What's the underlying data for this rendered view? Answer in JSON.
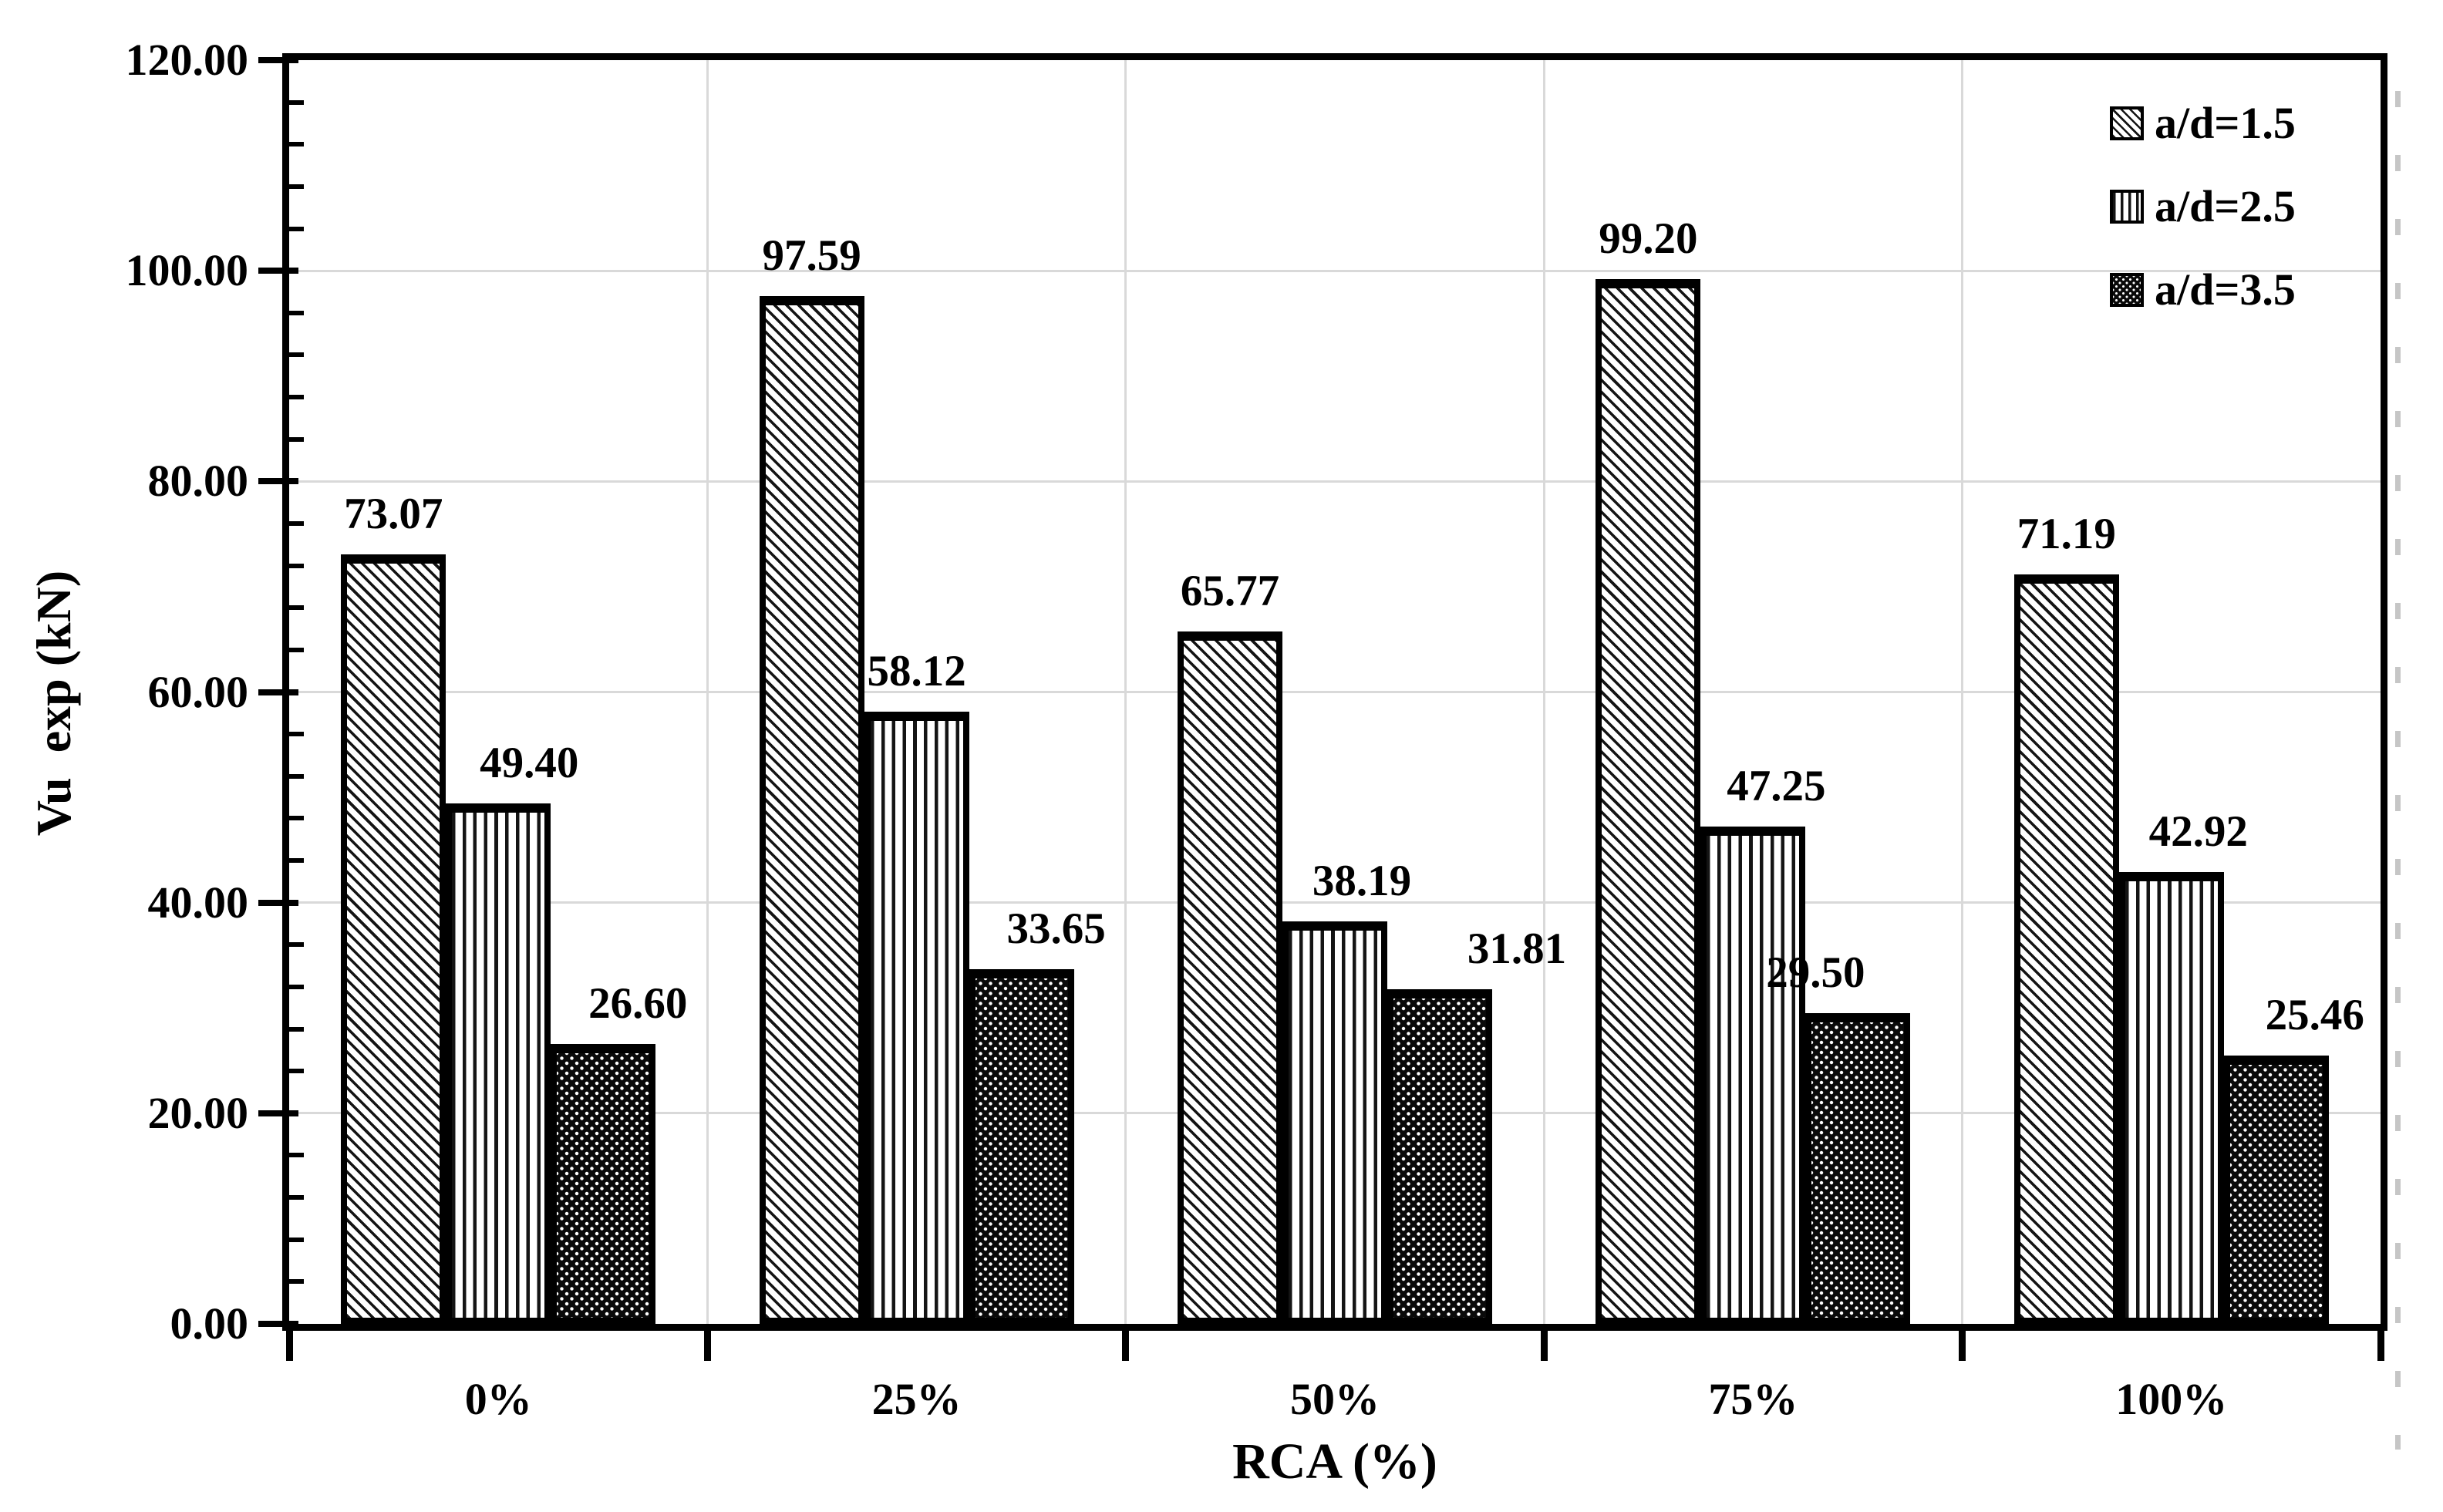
{
  "chart_data": {
    "type": "bar",
    "title": "",
    "xlabel": "RCA (%)",
    "ylabel": "Vu  exp (kN)",
    "categories": [
      "0%",
      "25%",
      "50%",
      "75%",
      "100%"
    ],
    "series": [
      {
        "name": "a/d=1.5",
        "pattern": "diagonal-hatch",
        "values": [
          73.07,
          97.59,
          65.77,
          99.2,
          71.19
        ],
        "labels": [
          "73.07",
          "97.59",
          "65.77",
          "99.20",
          "71.19"
        ]
      },
      {
        "name": "a/d=2.5",
        "pattern": "vertical-lines",
        "values": [
          49.4,
          58.12,
          38.19,
          47.25,
          42.92
        ],
        "labels": [
          "49.40",
          "58.12",
          "38.19",
          "47.25",
          "42.92"
        ]
      },
      {
        "name": "a/d=3.5",
        "pattern": "dense-dots",
        "values": [
          26.6,
          33.65,
          31.81,
          29.5,
          25.46
        ],
        "labels": [
          "26.60",
          "33.65",
          "31.81",
          "29.50",
          "25.46"
        ]
      }
    ],
    "ylim": [
      0,
      120
    ],
    "y_major_unit": 20,
    "y_minor_unit": 4,
    "y_tick_labels": [
      "0.00",
      "20.00",
      "40.00",
      "60.00",
      "80.00",
      "100.00",
      "120.00"
    ],
    "grid": {
      "horizontal": true,
      "vertical": true
    },
    "legend_position": "top-right",
    "colors": {
      "bar_fill": "#ffffff",
      "bar_line": "#000000",
      "gridline": "#d9d9d9",
      "dashed_edge_line": "#c6c6c6",
      "text": "#000000"
    }
  }
}
